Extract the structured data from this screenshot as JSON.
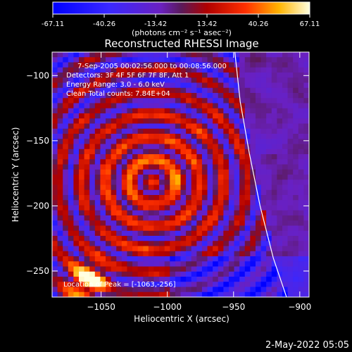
{
  "chart_data": {
    "type": "heatmap",
    "title": "Reconstructed RHESSI Image",
    "colorbar": {
      "ticks": [
        "-67.11",
        "-40.26",
        "-13.42",
        "13.42",
        "40.26",
        "67.11"
      ],
      "range": [
        -67.11,
        67.11
      ],
      "unit_label": "(photons cm⁻² s⁻¹ asec⁻²)"
    },
    "xlabel": "Heliocentric X (arcsec)",
    "ylabel": "Heliocentric Y (arcsec)",
    "xlim": [
      -1087,
      -893
    ],
    "ylim": [
      -270,
      -82
    ],
    "x_ticks": [
      "−1050",
      "−1000",
      "−950",
      "−900"
    ],
    "y_ticks": [
      "−100",
      "−150",
      "−200",
      "−250"
    ],
    "annotations": [
      "7-Sep-2005 00:02:56.000 to 00:08:56.000",
      "Detectors: 3F 4F 5F 6F 7F 8F, Att 1",
      "Energy Range: 3.0 - 6.0 keV",
      "Clean     Total counts: 7.84E+04"
    ],
    "peak_label": "Location of Peak = [-1063,-256]",
    "peak": [
      -1063,
      -256
    ],
    "limb": [
      [
        -949,
        -82
      ],
      [
        -945,
        -120
      ],
      [
        -938,
        -160
      ],
      [
        -930,
        -200
      ],
      [
        -920,
        -240
      ],
      [
        -910,
        -270
      ]
    ],
    "grid": false
  },
  "footer": {
    "timestamp": "2-May-2022 05:05"
  }
}
